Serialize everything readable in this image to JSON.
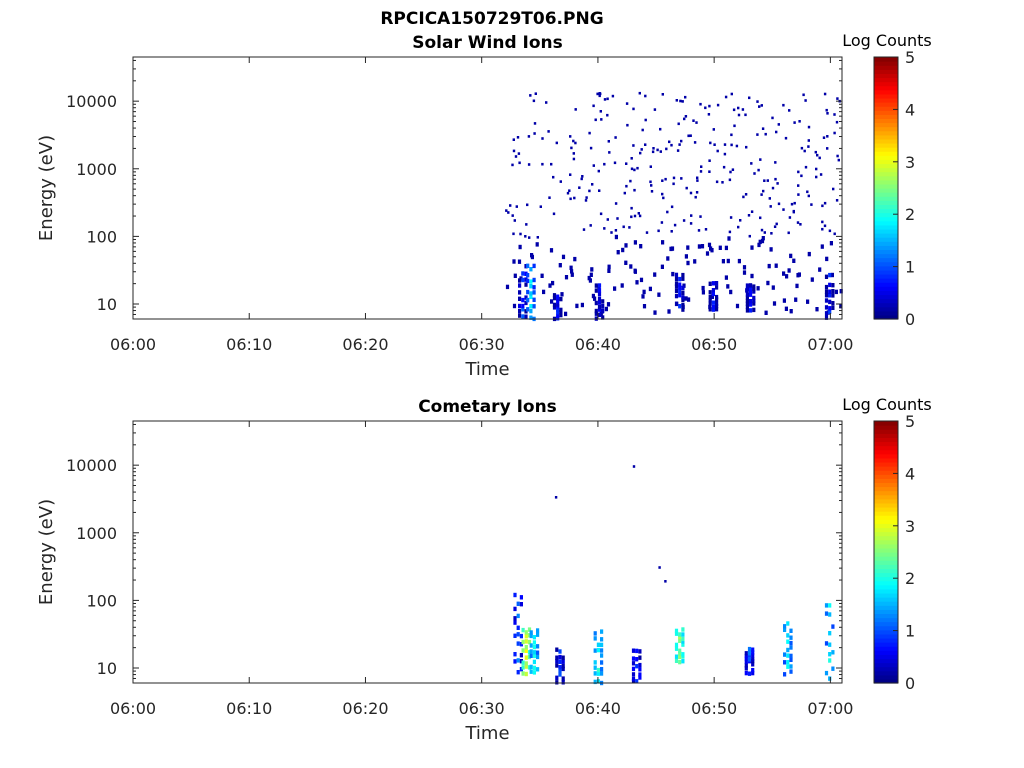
{
  "figure": {
    "title": "RPCICA150729T06.PNG"
  },
  "colormap": {
    "name": "jet"
  },
  "chart_data": [
    {
      "type": "heatmap",
      "title": "Solar Wind Ions",
      "xlabel": "Time",
      "ylabel": "Energy (eV)",
      "xlim": [
        "06:00",
        "07:01"
      ],
      "ylim": [
        6,
        45000
      ],
      "yscale": "log",
      "x_ticks": [
        "06:00",
        "06:10",
        "06:20",
        "06:30",
        "06:40",
        "06:50",
        "07:00"
      ],
      "y_ticks": [
        "10",
        "100",
        "1000",
        "10000"
      ],
      "colorbar": {
        "label": "Log Counts",
        "range": [
          0,
          5
        ],
        "ticks": [
          "0",
          "1",
          "2",
          "3",
          "4",
          "5"
        ]
      },
      "data_start": "06:32",
      "dominant_value": 0.2,
      "clusters": [
        {
          "t": 33.4,
          "e_low": 6,
          "e_high": 40,
          "value": 0.6
        },
        {
          "t": 34.1,
          "e_low": 6,
          "e_high": 40,
          "value": 1.3
        },
        {
          "t": 36.4,
          "e_low": 6,
          "e_high": 14,
          "value": 0.3
        },
        {
          "t": 40.0,
          "e_low": 6,
          "e_high": 20,
          "value": 0.3
        },
        {
          "t": 46.9,
          "e_low": 8,
          "e_high": 30,
          "value": 0.4
        },
        {
          "t": 49.8,
          "e_low": 8,
          "e_high": 22,
          "value": 0.3
        },
        {
          "t": 53.0,
          "e_low": 8,
          "e_high": 20,
          "value": 0.3
        },
        {
          "t": 59.8,
          "e_low": 6,
          "e_high": 30,
          "value": 0.4
        }
      ]
    },
    {
      "type": "heatmap",
      "title": "Cometary Ions",
      "xlabel": "Time",
      "ylabel": "Energy (eV)",
      "xlim": [
        "06:00",
        "07:01"
      ],
      "ylim": [
        6,
        45000
      ],
      "yscale": "log",
      "x_ticks": [
        "06:00",
        "06:10",
        "06:20",
        "06:30",
        "06:40",
        "06:50",
        "07:00"
      ],
      "y_ticks": [
        "10",
        "100",
        "1000",
        "10000"
      ],
      "colorbar": {
        "label": "Log Counts",
        "range": [
          0,
          5
        ],
        "ticks": [
          "0",
          "1",
          "2",
          "3",
          "4",
          "5"
        ]
      },
      "clusters": [
        {
          "t": 33.0,
          "e_low": 8,
          "e_high": 140,
          "value": 0.8
        },
        {
          "t": 33.7,
          "e_low": 8,
          "e_high": 40,
          "value": 2.6
        },
        {
          "t": 34.4,
          "e_low": 8,
          "e_high": 40,
          "value": 1.6
        },
        {
          "t": 36.6,
          "e_low": 6,
          "e_high": 20,
          "value": 0.5
        },
        {
          "t": 39.9,
          "e_low": 6,
          "e_high": 40,
          "value": 1.7
        },
        {
          "t": 43.2,
          "e_low": 6,
          "e_high": 20,
          "value": 0.6
        },
        {
          "t": 46.9,
          "e_low": 12,
          "e_high": 40,
          "value": 2.2
        },
        {
          "t": 52.9,
          "e_low": 8,
          "e_high": 20,
          "value": 0.7
        },
        {
          "t": 56.2,
          "e_low": 8,
          "e_high": 50,
          "value": 1.5
        },
        {
          "t": 59.8,
          "e_low": 6,
          "e_high": 100,
          "value": 1.5
        }
      ],
      "isolated_points": [
        {
          "t": 36.3,
          "e": 3500,
          "value": 0.2
        },
        {
          "t": 43.0,
          "e": 10000,
          "value": 0.2
        },
        {
          "t": 45.2,
          "e": 320,
          "value": 0.2
        },
        {
          "t": 45.7,
          "e": 200,
          "value": 0.2
        }
      ]
    }
  ]
}
